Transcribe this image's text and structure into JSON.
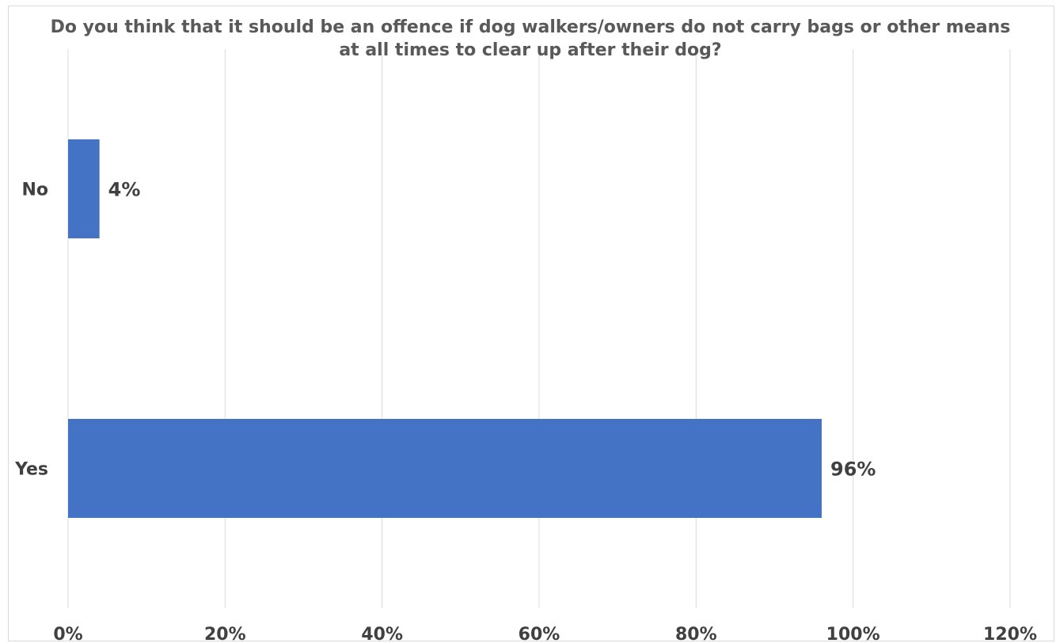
{
  "chart_data": {
    "type": "bar",
    "orientation": "horizontal",
    "title": "Do you think that it should be an offence if dog walkers/owners do not carry bags or other means at all times to clear up after their dog?",
    "categories": [
      "No",
      "Yes"
    ],
    "values": [
      4,
      96
    ],
    "value_labels": [
      "4%",
      "96%"
    ],
    "xlim": [
      0,
      120
    ],
    "x_ticks": [
      0,
      20,
      40,
      60,
      80,
      100,
      120
    ],
    "x_tick_labels": [
      "0%",
      "20%",
      "40%",
      "60%",
      "80%",
      "100%",
      "120%"
    ],
    "xlabel": "",
    "ylabel": "",
    "grid": "vertical",
    "legend": "none",
    "bar_color": "#4472c4",
    "grid_color": "#d9d9d9"
  }
}
